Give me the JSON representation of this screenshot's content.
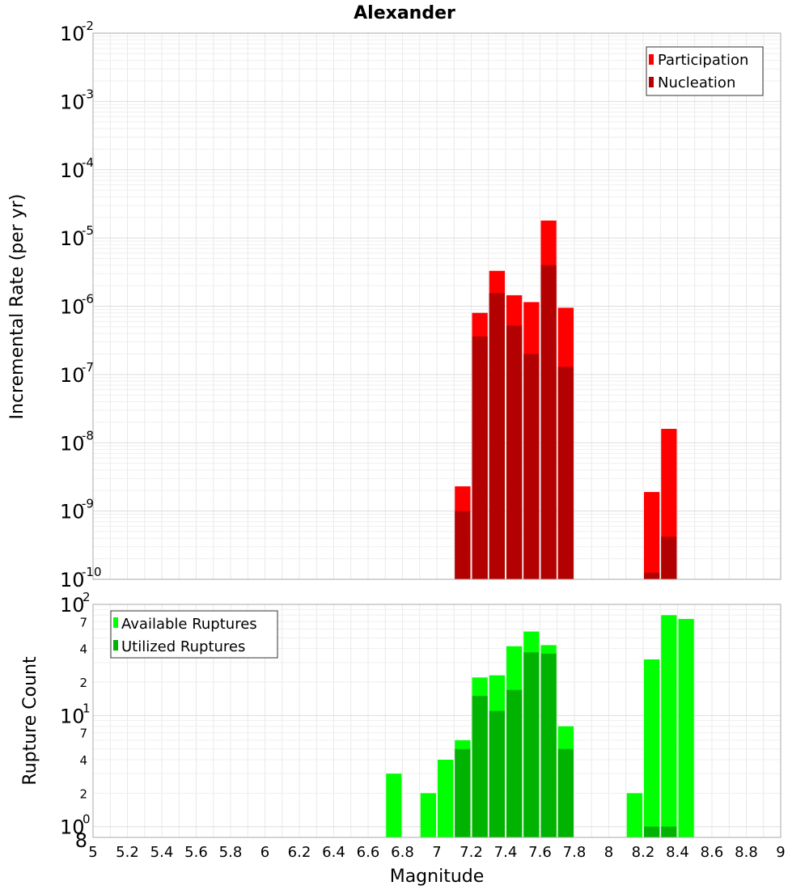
{
  "chart_data": [
    {
      "type": "bar",
      "title": "Alexander",
      "ylabel": "Incremental Rate (per yr)",
      "yscale": "log",
      "ylim": [
        1e-10,
        0.01
      ],
      "xlim": [
        5,
        9
      ],
      "bar_width": 0.1,
      "legend_position": "top-right",
      "series": [
        {
          "name": "Participation",
          "color": "#ff0000",
          "points": [
            {
              "x": 7.15,
              "y": 2.3e-09
            },
            {
              "x": 7.25,
              "y": 8e-07
            },
            {
              "x": 7.35,
              "y": 3.3e-06
            },
            {
              "x": 7.45,
              "y": 1.45e-06
            },
            {
              "x": 7.55,
              "y": 1.15e-06
            },
            {
              "x": 7.65,
              "y": 1.8e-05
            },
            {
              "x": 7.75,
              "y": 9.5e-07
            },
            {
              "x": 8.25,
              "y": 1.9e-09
            },
            {
              "x": 8.35,
              "y": 1.6e-08
            }
          ]
        },
        {
          "name": "Nucleation",
          "color": "#b30000",
          "points": [
            {
              "x": 7.15,
              "y": 1e-09
            },
            {
              "x": 7.25,
              "y": 3.6e-07
            },
            {
              "x": 7.35,
              "y": 1.55e-06
            },
            {
              "x": 7.45,
              "y": 5.2e-07
            },
            {
              "x": 7.55,
              "y": 2e-07
            },
            {
              "x": 7.65,
              "y": 4e-06
            },
            {
              "x": 7.75,
              "y": 1.3e-07
            },
            {
              "x": 8.25,
              "y": 1.25e-10
            },
            {
              "x": 8.35,
              "y": 4.2e-10
            }
          ]
        }
      ]
    },
    {
      "type": "bar",
      "xlabel": "Magnitude",
      "ylabel": "Rupture Count",
      "yscale": "log",
      "ylim": [
        0.8,
        100
      ],
      "xlim": [
        5,
        9
      ],
      "bar_width": 0.1,
      "legend_position": "top-left",
      "series": [
        {
          "name": "Available Ruptures",
          "color": "#00ff00",
          "points": [
            {
              "x": 6.75,
              "y": 3
            },
            {
              "x": 6.95,
              "y": 2
            },
            {
              "x": 7.05,
              "y": 4
            },
            {
              "x": 7.15,
              "y": 6
            },
            {
              "x": 7.25,
              "y": 22
            },
            {
              "x": 7.35,
              "y": 23
            },
            {
              "x": 7.45,
              "y": 42
            },
            {
              "x": 7.55,
              "y": 57
            },
            {
              "x": 7.65,
              "y": 43
            },
            {
              "x": 7.75,
              "y": 8
            },
            {
              "x": 8.15,
              "y": 2
            },
            {
              "x": 8.25,
              "y": 32
            },
            {
              "x": 8.35,
              "y": 80
            },
            {
              "x": 8.45,
              "y": 74
            }
          ]
        },
        {
          "name": "Utilized Ruptures",
          "color": "#00b300",
          "points": [
            {
              "x": 7.15,
              "y": 5
            },
            {
              "x": 7.25,
              "y": 15
            },
            {
              "x": 7.35,
              "y": 11
            },
            {
              "x": 7.45,
              "y": 17
            },
            {
              "x": 7.55,
              "y": 37
            },
            {
              "x": 7.65,
              "y": 36
            },
            {
              "x": 7.75,
              "y": 5
            },
            {
              "x": 8.25,
              "y": 1
            },
            {
              "x": 8.35,
              "y": 1
            }
          ]
        }
      ]
    }
  ],
  "top_axis": {
    "base": "10",
    "exponents": [
      "-2",
      "-3",
      "-4",
      "-5",
      "-6",
      "-7",
      "-8",
      "-9",
      "-10"
    ]
  },
  "bottom_axis": {
    "major": [
      {
        "base": "10",
        "exp": "2"
      },
      {
        "base": "10",
        "exp": "1"
      },
      {
        "base": "10",
        "exp": "0"
      }
    ],
    "minor_labels": [
      "7",
      "4",
      "2",
      "7",
      "4",
      "2",
      "8"
    ]
  },
  "x_ticks": [
    "5",
    "5.2",
    "5.4",
    "5.6",
    "5.8",
    "6",
    "6.2",
    "6.4",
    "6.6",
    "6.8",
    "7",
    "7.2",
    "7.4",
    "7.6",
    "7.8",
    "8",
    "8.2",
    "8.4",
    "8.6",
    "8.8",
    "9"
  ]
}
